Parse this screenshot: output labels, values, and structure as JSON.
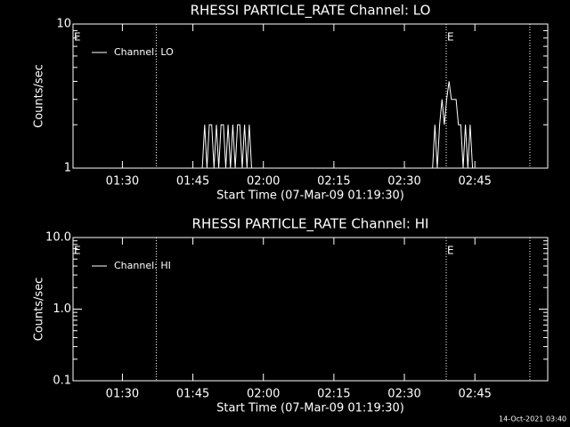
{
  "chart_data": [
    {
      "type": "line",
      "title": "RHESSI PARTICLE_RATE Channel: LO",
      "xlabel": "Start Time (07-Mar-09 01:19:30)",
      "ylabel": "Counts/sec",
      "log_y": true,
      "ylim": [
        1,
        10
      ],
      "yticks": [
        1,
        10
      ],
      "xlim": [
        79.5,
        180.5
      ],
      "xticks": [
        {
          "value": 90,
          "label": "01:30"
        },
        {
          "value": 105,
          "label": "01:45"
        },
        {
          "value": 120,
          "label": "02:00"
        },
        {
          "value": 135,
          "label": "02:15"
        },
        {
          "value": 150,
          "label": "02:30"
        },
        {
          "value": 165,
          "label": "02:45"
        }
      ],
      "vlines": [
        97.2,
        158.9,
        176.7
      ],
      "annotations": [
        {
          "x": 79.5,
          "text": "E"
        },
        {
          "x": 158.9,
          "text": "E"
        }
      ],
      "series": [
        {
          "name": "Channel: LO",
          "color": "#ffffff",
          "x": [
            107,
            107.5,
            108,
            108.5,
            109,
            109.5,
            110,
            110.5,
            111,
            111.5,
            112,
            112.5,
            113,
            113.5,
            114,
            114.5,
            115,
            115.5,
            116,
            116.5,
            117,
            117.5,
            118,
            156,
            156.5,
            157,
            157.5,
            158,
            158.5,
            159,
            159.5,
            160,
            160.5,
            161,
            161.5,
            162,
            162.5,
            163,
            163.5,
            164,
            164.5,
            165
          ],
          "values": [
            1,
            2,
            1,
            2,
            2,
            1,
            2,
            1,
            2,
            2,
            1,
            2,
            1,
            2,
            1,
            2,
            2,
            1,
            2,
            1,
            2,
            1,
            1,
            1,
            2,
            1,
            2,
            3,
            2,
            3,
            4,
            3,
            3,
            3,
            2,
            2,
            1,
            2,
            1,
            2,
            1,
            1
          ]
        }
      ]
    },
    {
      "type": "line",
      "title": "RHESSI PARTICLE_RATE Channel: HI",
      "xlabel": "Start Time (07-Mar-09 01:19:30)",
      "ylabel": "Counts/sec",
      "log_y": true,
      "ylim": [
        0.1,
        10
      ],
      "yticks": [
        0.1,
        {
          "value": 1,
          "label": "1.0"
        },
        {
          "value": 10,
          "label": "10.0"
        }
      ],
      "xlim": [
        79.5,
        180.5
      ],
      "xticks": [
        {
          "value": 90,
          "label": "01:30"
        },
        {
          "value": 105,
          "label": "01:45"
        },
        {
          "value": 120,
          "label": "02:00"
        },
        {
          "value": 135,
          "label": "02:15"
        },
        {
          "value": 150,
          "label": "02:30"
        },
        {
          "value": 165,
          "label": "02:45"
        }
      ],
      "vlines": [
        97.2,
        158.9,
        176.7
      ],
      "annotations": [
        {
          "x": 79.5,
          "text": "E"
        },
        {
          "x": 158.9,
          "text": "E"
        }
      ],
      "series": [
        {
          "name": "Channel: HI",
          "color": "#ffffff",
          "x": [],
          "values": []
        }
      ]
    }
  ],
  "footer": "14-Oct-2021 03:40"
}
